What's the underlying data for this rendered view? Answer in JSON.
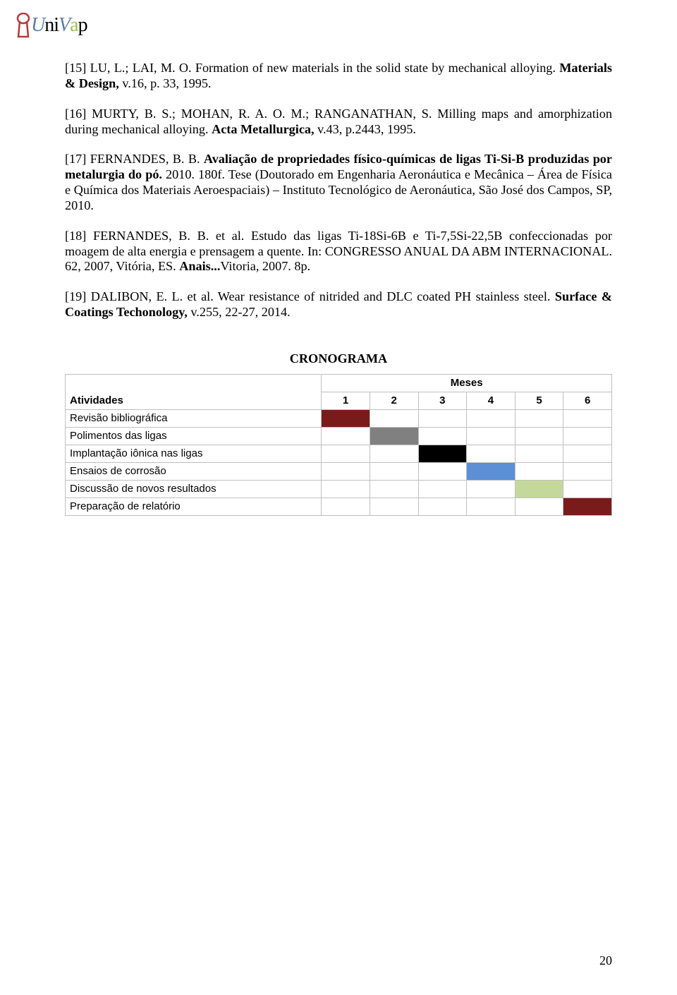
{
  "logo": {
    "parts": [
      "U",
      "n",
      "i",
      "V",
      "a",
      "p"
    ]
  },
  "references": [
    {
      "num": "[15]",
      "body_parts": [
        {
          "t": "plain",
          "s": " LU, L.; LAI, M. O. Formation of new materials in the solid state by mechanical alloying. "
        },
        {
          "t": "bold",
          "s": "Materials & Design, "
        },
        {
          "t": "plain",
          "s": "v.16, p. 33, 1995."
        }
      ]
    },
    {
      "num": "[16]",
      "body_parts": [
        {
          "t": "plain",
          "s": " MURTY, B. S.; MOHAN, R. A. O. M.; RANGANATHAN, S. Milling maps and amorphization during mechanical alloying. "
        },
        {
          "t": "bold",
          "s": "Acta Metallurgica, "
        },
        {
          "t": "plain",
          "s": "v.43, p.2443, 1995."
        }
      ]
    },
    {
      "num": "[17]",
      "body_parts": [
        {
          "t": "plain",
          "s": " FERNANDES, B. B. "
        },
        {
          "t": "bold",
          "s": "Avaliação de propriedades físico-químicas de ligas Ti-Si-B produzidas por metalurgia do pó."
        },
        {
          "t": "plain",
          "s": " 2010. 180f. Tese (Doutorado em Engenharia Aeronáutica e Mecânica – Área de Física e Química dos Materiais Aeroespaciais) – Instituto Tecnológico de Aeronáutica, São José dos Campos, SP, 2010."
        }
      ]
    },
    {
      "num": "[18]",
      "body_parts": [
        {
          "t": "plain",
          "s": " FERNANDES, B. B. et al. Estudo das ligas Ti-18Si-6B e Ti-7,5Si-22,5B confeccionadas por moagem de alta energia e prensagem a quente. In: CONGRESSO ANUAL DA ABM INTERNACIONAL. 62, 2007, Vitória, ES. "
        },
        {
          "t": "bold",
          "s": "Anais..."
        },
        {
          "t": "plain",
          "s": "Vitoria, 2007. 8p."
        }
      ]
    },
    {
      "num": "[19]",
      "body_parts": [
        {
          "t": "plain",
          "s": " DALIBON, E. L. et al. Wear resistance of nitrided and DLC coated PH stainless steel. "
        },
        {
          "t": "bold",
          "s": "Surface & Coatings Techonology, "
        },
        {
          "t": "plain",
          "s": "v.255, 22-27, 2014."
        }
      ]
    }
  ],
  "cronograma": {
    "title": "CRONOGRAMA",
    "meses_label": "Meses",
    "atividades_label": "Atividades",
    "month_numbers": [
      "1",
      "2",
      "3",
      "4",
      "5",
      "6"
    ],
    "rows": [
      {
        "label": "Revisão bibliográfica",
        "fill": [
          1,
          0,
          0,
          0,
          0,
          0
        ],
        "color": "#7a1b1b"
      },
      {
        "label": "Polimentos das ligas",
        "fill": [
          0,
          1,
          0,
          0,
          0,
          0
        ],
        "color": "#808080"
      },
      {
        "label": "Implantação iônica nas ligas",
        "fill": [
          0,
          0,
          1,
          0,
          0,
          0
        ],
        "color": "#000000"
      },
      {
        "label": "Ensaios de corrosão",
        "fill": [
          0,
          0,
          0,
          1,
          0,
          0
        ],
        "color": "#5b8fd6"
      },
      {
        "label": "Discussão de novos resultados",
        "fill": [
          0,
          0,
          0,
          0,
          1,
          0
        ],
        "color": "#c5d89b"
      },
      {
        "label": "Preparação de relatório",
        "fill": [
          0,
          0,
          0,
          0,
          0,
          1
        ],
        "color": "#7a1b1b"
      }
    ]
  },
  "page_number": "20"
}
